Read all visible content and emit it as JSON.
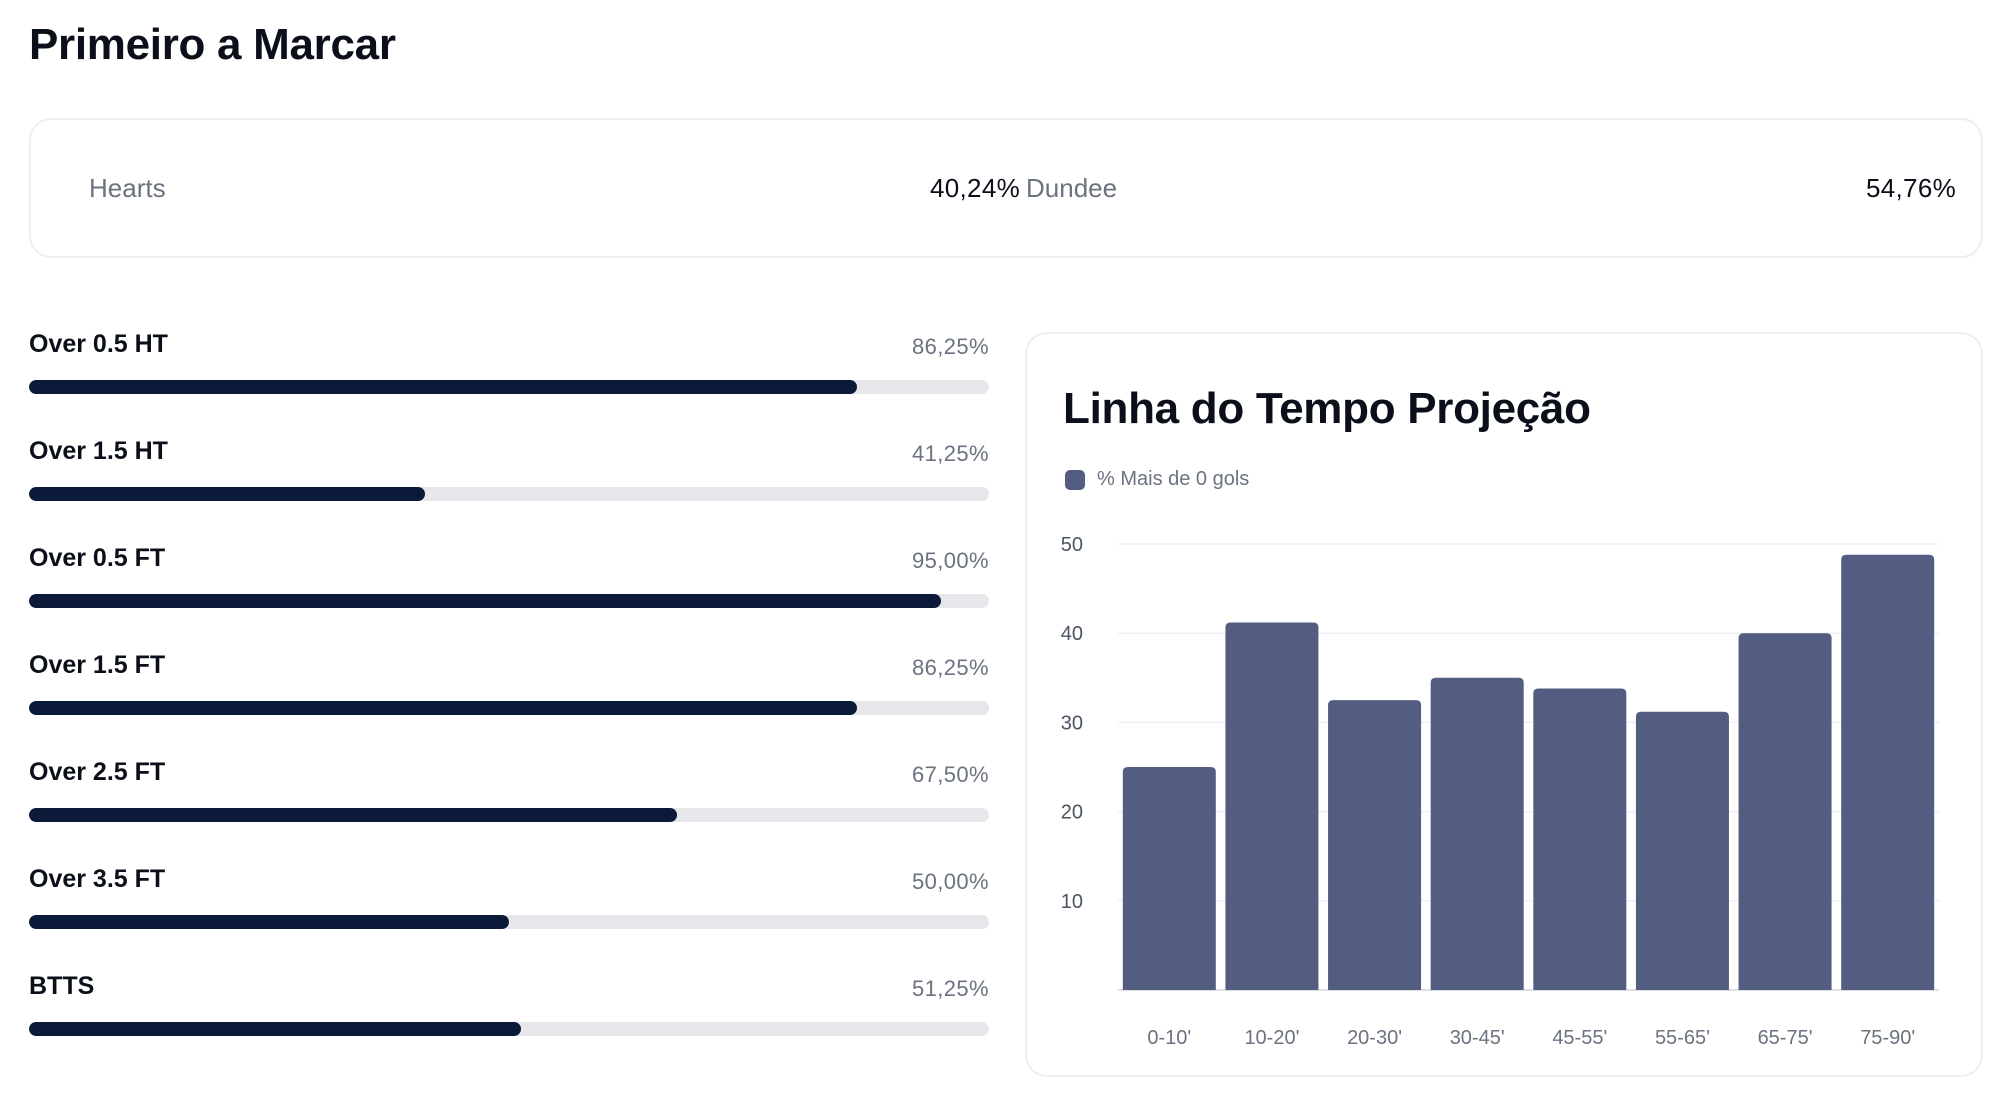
{
  "page": {
    "title": "Primeiro a Marcar"
  },
  "first_to_score": {
    "home": {
      "team": "Hearts",
      "value": "40,24%"
    },
    "away": {
      "team": "Dundee",
      "value": "54,76%"
    }
  },
  "stats": [
    {
      "label": "Over 0.5 HT",
      "value": "86,25%",
      "percent": 86.25
    },
    {
      "label": "Over 1.5 HT",
      "value": "41,25%",
      "percent": 41.25
    },
    {
      "label": "Over 0.5 FT",
      "value": "95,00%",
      "percent": 95.0
    },
    {
      "label": "Over 1.5 FT",
      "value": "86,25%",
      "percent": 86.25
    },
    {
      "label": "Over 2.5 FT",
      "value": "67,50%",
      "percent": 67.5
    },
    {
      "label": "Over 3.5 FT",
      "value": "50,00%",
      "percent": 50.0
    },
    {
      "label": "BTTS",
      "value": "51,25%",
      "percent": 51.25
    }
  ],
  "colors": {
    "bar_fill": "#0c1a3a",
    "bar_track": "#e5e7eb",
    "chart_bar": "#535d82",
    "muted_text": "#6b7280",
    "card_border": "#eceef2"
  },
  "chart_data": {
    "type": "bar",
    "title": "Linha do Tempo Projeção",
    "categories": [
      "0-10'",
      "10-20'",
      "20-30'",
      "30-45'",
      "45-55'",
      "55-65'",
      "65-75'",
      "75-90'"
    ],
    "series": [
      {
        "name": "% Mais de 0 gols",
        "values": [
          25,
          41.2,
          32.5,
          35,
          33.8,
          31.2,
          40,
          48.8
        ]
      }
    ],
    "yticks": [
      10,
      20,
      30,
      40,
      50
    ],
    "ylim": [
      0,
      50
    ],
    "xlabel": "",
    "ylabel": "",
    "grid": true,
    "legend": "top-left"
  }
}
